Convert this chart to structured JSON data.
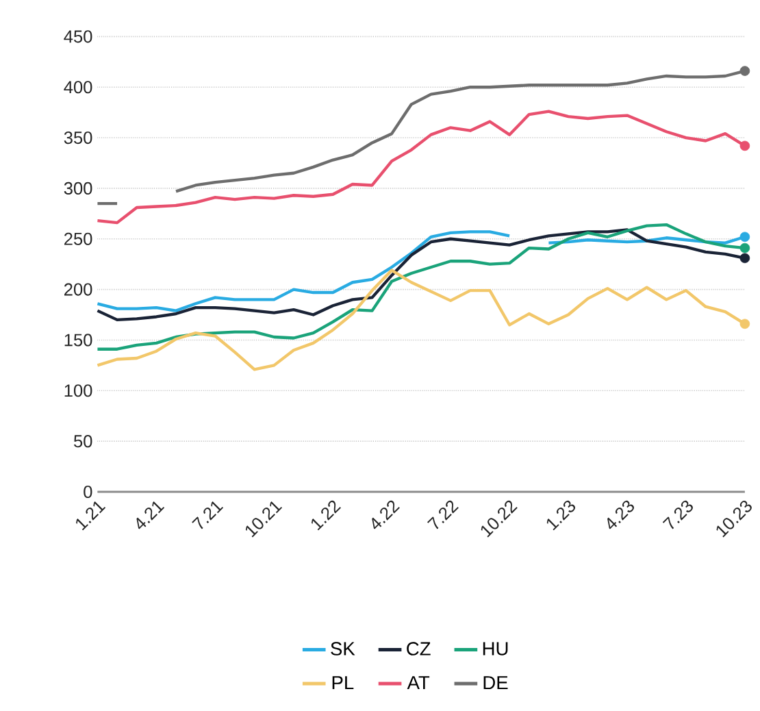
{
  "chart_data": {
    "type": "line",
    "categories": [
      "1.21",
      null,
      null,
      "4.21",
      null,
      null,
      "7.21",
      null,
      null,
      "10.21",
      null,
      null,
      "1.22",
      null,
      null,
      "4.22",
      null,
      null,
      "7.22",
      null,
      null,
      "10.22",
      null,
      null,
      "1.23",
      null,
      null,
      "4.23",
      null,
      null,
      "7.23",
      null,
      null,
      "10.23"
    ],
    "series": [
      {
        "name": "SK",
        "color": "#29abe2",
        "values": [
          186,
          181,
          181,
          182,
          179,
          186,
          192,
          190,
          190,
          190,
          200,
          197,
          197,
          207,
          210,
          222,
          236,
          252,
          256,
          257,
          257,
          253,
          null,
          246,
          247,
          249,
          248,
          247,
          248,
          251,
          249,
          247,
          246,
          252
        ]
      },
      {
        "name": "CZ",
        "color": "#1a2336",
        "values": [
          179,
          170,
          171,
          173,
          176,
          182,
          182,
          181,
          179,
          177,
          180,
          175,
          184,
          190,
          192,
          214,
          234,
          247,
          250,
          248,
          246,
          244,
          249,
          253,
          255,
          257,
          257,
          259,
          248,
          245,
          242,
          237,
          235,
          231
        ]
      },
      {
        "name": "HU",
        "color": "#1aa37a",
        "values": [
          141,
          141,
          145,
          147,
          153,
          156,
          157,
          158,
          158,
          153,
          152,
          157,
          168,
          180,
          179,
          208,
          216,
          222,
          228,
          228,
          225,
          226,
          241,
          240,
          250,
          256,
          252,
          258,
          263,
          264,
          255,
          247,
          243,
          241
        ]
      },
      {
        "name": "PL",
        "color": "#f2c76a",
        "values": [
          125,
          131,
          132,
          139,
          151,
          157,
          154,
          138,
          121,
          125,
          140,
          147,
          160,
          176,
          199,
          219,
          207,
          198,
          189,
          199,
          199,
          165,
          176,
          166,
          175,
          191,
          201,
          190,
          202,
          190,
          199,
          183,
          178,
          166
        ]
      },
      {
        "name": "AT",
        "color": "#e8506e",
        "values": [
          268,
          266,
          281,
          282,
          283,
          286,
          291,
          289,
          291,
          290,
          293,
          292,
          294,
          304,
          303,
          327,
          338,
          353,
          360,
          357,
          366,
          353,
          373,
          376,
          371,
          369,
          371,
          372,
          364,
          356,
          350,
          347,
          354,
          342
        ]
      },
      {
        "name": "DE",
        "color": "#6d6d6d",
        "values": [
          285,
          285,
          null,
          null,
          297,
          303,
          306,
          308,
          310,
          313,
          315,
          321,
          328,
          333,
          345,
          354,
          383,
          393,
          396,
          400,
          400,
          401,
          402,
          402,
          402,
          402,
          402,
          404,
          408,
          411,
          410,
          410,
          411,
          416
        ]
      }
    ],
    "ylim": [
      0,
      450
    ],
    "yticks": [
      0,
      50,
      100,
      150,
      200,
      250,
      300,
      350,
      400,
      450
    ],
    "grid": "y",
    "legend": "bottom",
    "line_style": "solid"
  }
}
